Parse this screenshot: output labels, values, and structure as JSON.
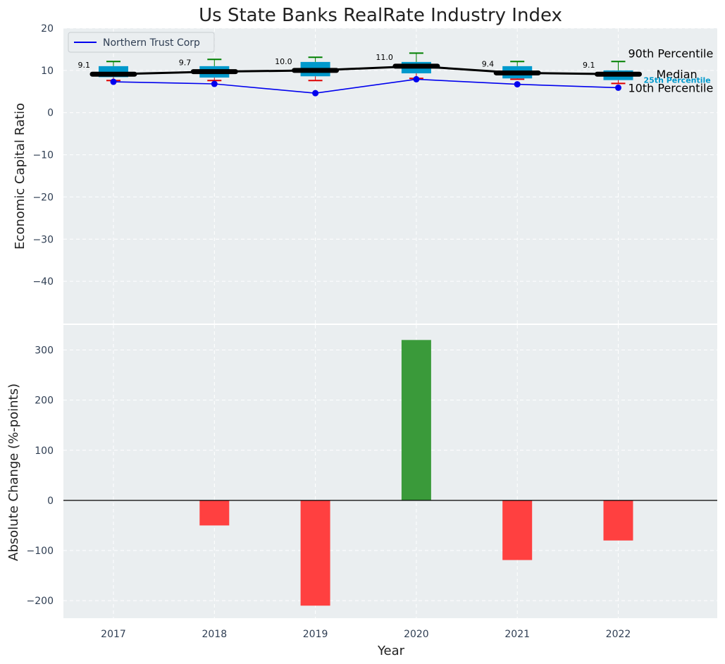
{
  "chart_data": [
    {
      "type": "box",
      "title": "Us State Banks RealRate Industry Index",
      "ylabel": "Economic Capital Ratio",
      "ylim": [
        -50,
        20
      ],
      "yticks": [
        20,
        10,
        0,
        -10,
        -20,
        -30,
        -40
      ],
      "ytick_labels": [
        "20",
        "10",
        "0",
        "−10",
        "−20",
        "−30",
        "−40"
      ],
      "categories": [
        "2017",
        "2018",
        "2019",
        "2020",
        "2021",
        "2022"
      ],
      "grid": true,
      "legend": {
        "position": "top-left",
        "entries": [
          "Northern Trust Corp"
        ]
      },
      "boxes": [
        {
          "p10": 7.6,
          "q1": 8.4,
          "median": 9.1,
          "q3": 11.0,
          "p90": 12.1
        },
        {
          "p10": 7.6,
          "q1": 8.3,
          "median": 9.7,
          "q3": 11.0,
          "p90": 12.6
        },
        {
          "p10": 7.6,
          "q1": 8.6,
          "median": 10.0,
          "q3": 12.0,
          "p90": 13.1
        },
        {
          "p10": 8.1,
          "q1": 9.3,
          "median": 11.0,
          "q3": 12.0,
          "p90": 14.1
        },
        {
          "p10": 7.9,
          "q1": 8.1,
          "median": 9.4,
          "q3": 11.0,
          "p90": 12.1
        },
        {
          "p10": 6.9,
          "q1": 7.7,
          "median": 9.1,
          "q3": 10.0,
          "p90": 12.1
        }
      ],
      "median_labels": [
        "9.1",
        "9.7",
        "10.0",
        "11.0",
        "9.4",
        "9.1"
      ],
      "series": [
        {
          "name": "Northern Trust Corp",
          "values": [
            7.3,
            6.8,
            4.6,
            7.9,
            6.7,
            5.9
          ],
          "color": "#0000ee"
        },
        {
          "name": "Median",
          "values": [
            9.1,
            9.7,
            10.0,
            11.0,
            9.4,
            9.1
          ],
          "color": "#000000"
        }
      ],
      "annotations": {
        "p90": "90th Percentile",
        "median": "Median",
        "q1": "25th Percentile",
        "p10": "10th Percentile"
      },
      "colors": {
        "box": "#0099cc",
        "whisker_high": "#008000",
        "whisker_low": "#dd0000",
        "background": "#eaeef0"
      }
    },
    {
      "type": "bar",
      "xlabel": "Year",
      "ylabel": "Absolute Change (%-points)",
      "ylim": [
        -235,
        350
      ],
      "yticks": [
        300,
        200,
        100,
        0,
        -100,
        -200
      ],
      "ytick_labels": [
        "300",
        "200",
        "100",
        "0",
        "−100",
        "−200"
      ],
      "categories": [
        "2017",
        "2018",
        "2019",
        "2020",
        "2021",
        "2022"
      ],
      "values": [
        0,
        -50,
        -210,
        320,
        -119,
        -80
      ],
      "grid": true,
      "colors": {
        "positive": "#3a9a3a",
        "negative": "#ff4040",
        "background": "#eaeef0"
      }
    }
  ]
}
